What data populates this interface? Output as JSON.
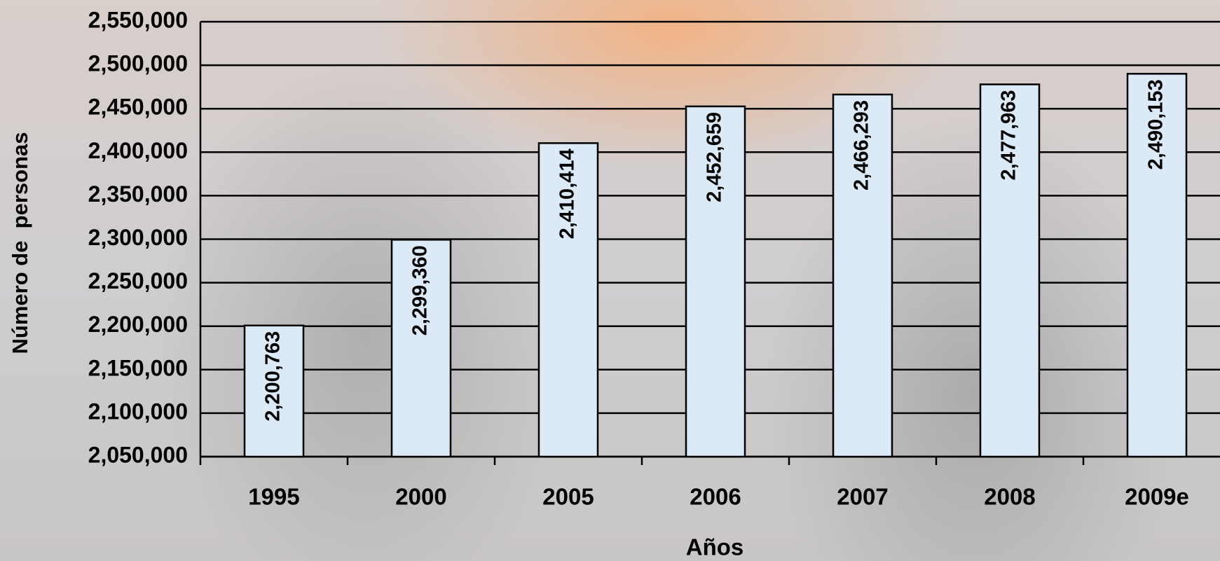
{
  "chart_data": {
    "type": "bar",
    "x_label": "Años",
    "y_label": "Número de  personas",
    "categories": [
      "1995",
      "2000",
      "2005",
      "2006",
      "2007",
      "2008",
      "2009e"
    ],
    "values": [
      2200763,
      2299360,
      2410414,
      2452659,
      2466293,
      2477963,
      2490153
    ],
    "value_labels": [
      "2,200,763",
      "2,299,360",
      "2,410,414",
      "2,452,659",
      "2,466,293",
      "2,477,963",
      "2,490,153"
    ],
    "color": "#dce9f7",
    "ylim": [
      2050000,
      2550000
    ],
    "yticks": [
      {
        "value": 2050000,
        "label": "2,050,000"
      },
      {
        "value": 2100000,
        "label": "2,100,000"
      },
      {
        "value": 2150000,
        "label": "2,150,000"
      },
      {
        "value": 2200000,
        "label": "2,200,000"
      },
      {
        "value": 2250000,
        "label": "2,250,000"
      },
      {
        "value": 2300000,
        "label": "2,300,000"
      },
      {
        "value": 2350000,
        "label": "2,350,000"
      },
      {
        "value": 2400000,
        "label": "2,400,000"
      },
      {
        "value": 2450000,
        "label": "2,450,000"
      },
      {
        "value": 2500000,
        "label": "2,500,000"
      },
      {
        "value": 2550000,
        "label": "2,550,000"
      }
    ],
    "grid": true
  }
}
